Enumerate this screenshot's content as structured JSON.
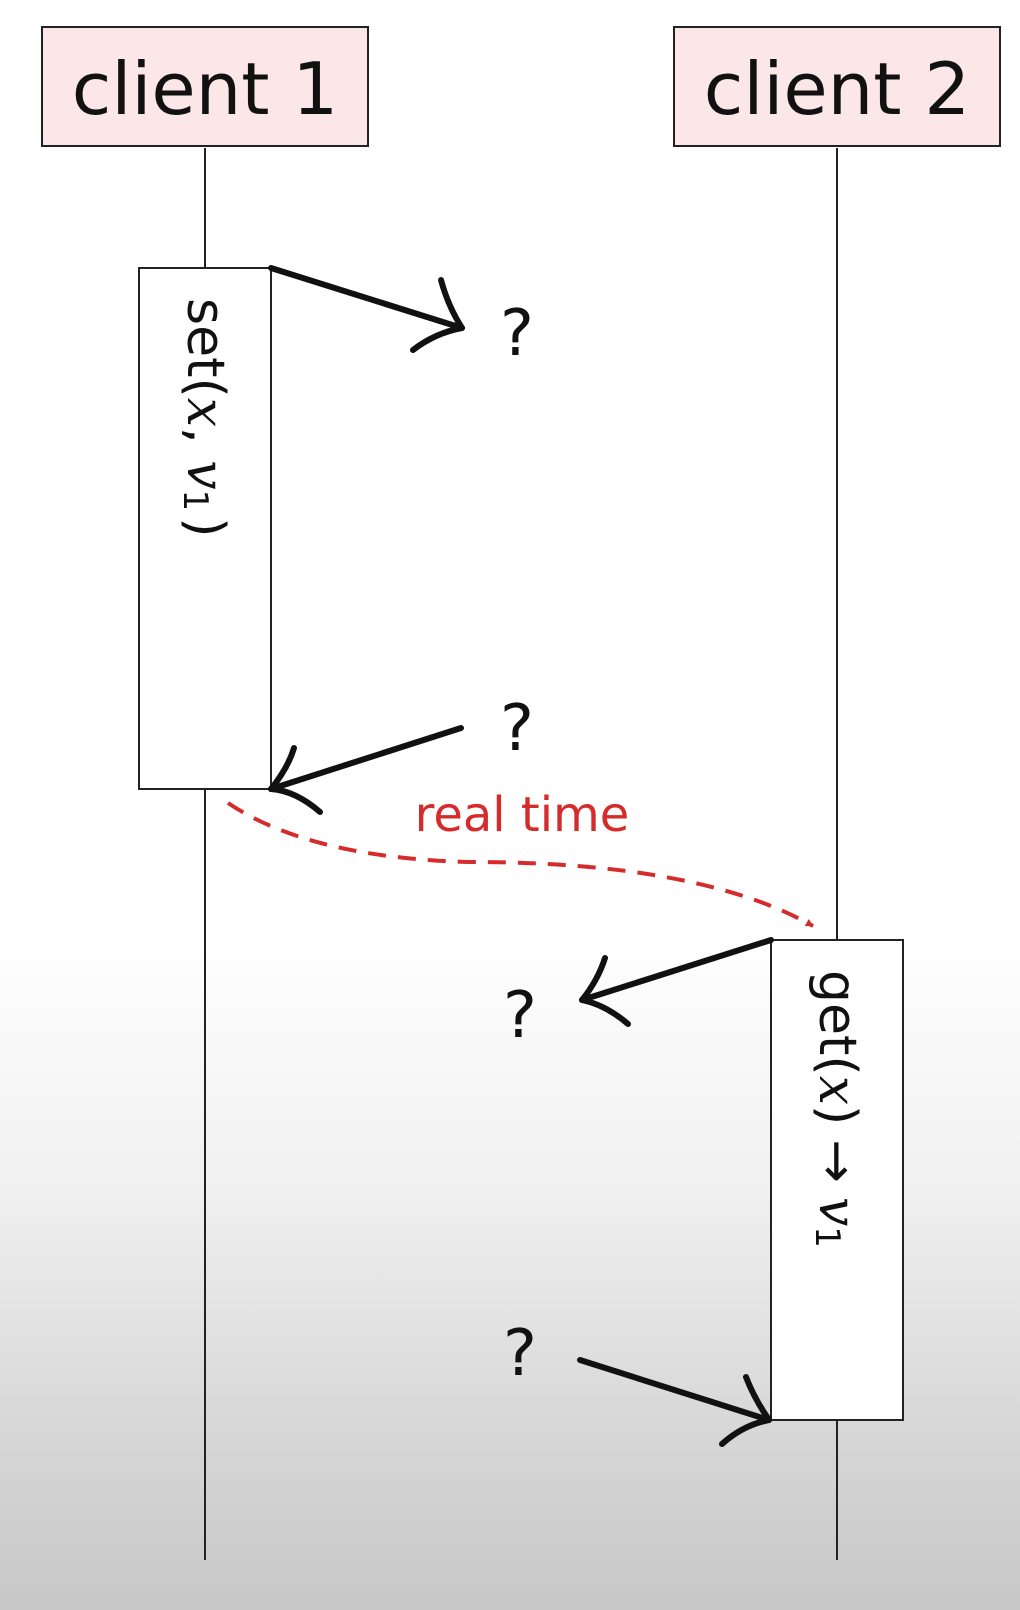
{
  "participants": [
    {
      "label": "client 1"
    },
    {
      "label": "client 2"
    }
  ],
  "activations": {
    "set": {
      "fn": "set(",
      "var": "x",
      "sep": ", ",
      "val": "v",
      "sub": "1",
      "close": ")"
    },
    "get": {
      "fn": "get(",
      "var": "x",
      "close": ")",
      "arrow": "→",
      "val": "v",
      "sub": "1"
    }
  },
  "unknowns": [
    "?",
    "?",
    "?",
    "?"
  ],
  "real_time_label": "real time",
  "colors": {
    "participant_fill": "#fbe6e8",
    "line": "#222222",
    "arrow": "#111111",
    "real_time": "#d62b2b"
  }
}
